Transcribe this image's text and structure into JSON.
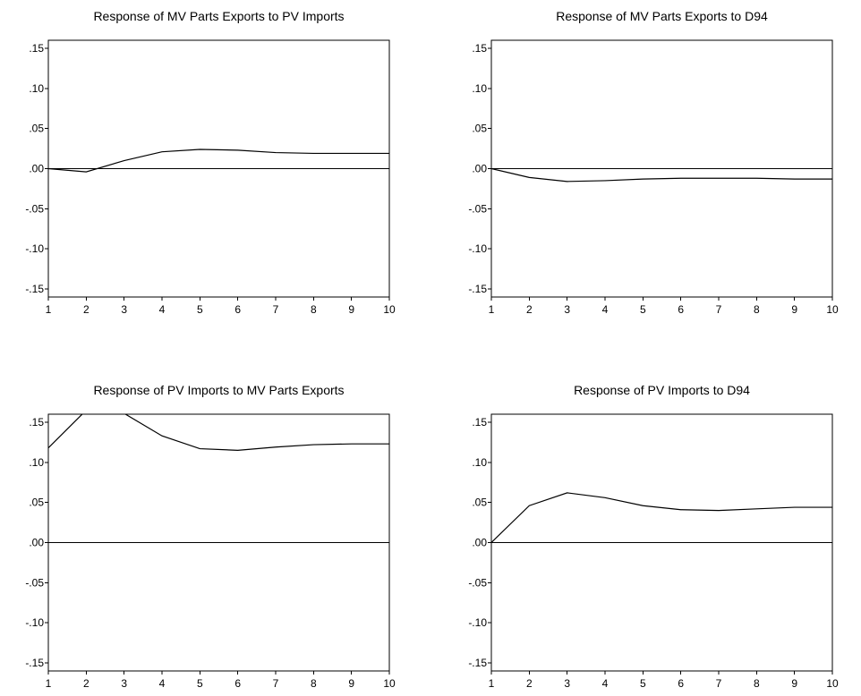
{
  "chart_data": [
    {
      "type": "line",
      "title": "Response of MV Parts Exports to PV Imports",
      "xlabel": "",
      "ylabel": "",
      "x": [
        1,
        2,
        3,
        4,
        5,
        6,
        7,
        8,
        9,
        10
      ],
      "x_ticks": [
        "1",
        "2",
        "3",
        "4",
        "5",
        "6",
        "7",
        "8",
        "9",
        "10"
      ],
      "y_ticks": [
        ".15",
        ".10",
        ".05",
        ".00",
        "-.05",
        "-.10",
        "-.15"
      ],
      "y_tick_values": [
        0.15,
        0.1,
        0.05,
        0.0,
        -0.05,
        -0.1,
        -0.15
      ],
      "ylim": [
        -0.16,
        0.16
      ],
      "xlim": [
        1,
        10
      ],
      "grid": false,
      "zero_line": true,
      "series": [
        {
          "values": [
            0.0,
            -0.004,
            0.01,
            0.021,
            0.024,
            0.023,
            0.02,
            0.019,
            0.019,
            0.019
          ]
        }
      ]
    },
    {
      "type": "line",
      "title": "Response of MV Parts Exports to D94",
      "xlabel": "",
      "ylabel": "",
      "x": [
        1,
        2,
        3,
        4,
        5,
        6,
        7,
        8,
        9,
        10
      ],
      "x_ticks": [
        "1",
        "2",
        "3",
        "4",
        "5",
        "6",
        "7",
        "8",
        "9",
        "10"
      ],
      "y_ticks": [
        ".15",
        ".10",
        ".05",
        ".00",
        "-.05",
        "-.10",
        "-.15"
      ],
      "y_tick_values": [
        0.15,
        0.1,
        0.05,
        0.0,
        -0.05,
        -0.1,
        -0.15
      ],
      "ylim": [
        -0.16,
        0.16
      ],
      "xlim": [
        1,
        10
      ],
      "grid": false,
      "zero_line": true,
      "series": [
        {
          "values": [
            0.0,
            -0.011,
            -0.016,
            -0.015,
            -0.013,
            -0.012,
            -0.012,
            -0.012,
            -0.013,
            -0.013
          ]
        }
      ]
    },
    {
      "type": "line",
      "title": "Response of PV Imports to MV Parts Exports",
      "xlabel": "",
      "ylabel": "",
      "x": [
        1,
        2,
        3,
        4,
        5,
        6,
        7,
        8,
        9,
        10
      ],
      "x_ticks": [
        "1",
        "2",
        "3",
        "4",
        "5",
        "6",
        "7",
        "8",
        "9",
        "10"
      ],
      "y_ticks": [
        ".15",
        ".10",
        ".05",
        ".00",
        "-.05",
        "-.10",
        "-.15"
      ],
      "y_tick_values": [
        0.15,
        0.1,
        0.05,
        0.0,
        -0.05,
        -0.1,
        -0.15
      ],
      "ylim": [
        -0.16,
        0.16
      ],
      "xlim": [
        1,
        10
      ],
      "grid": false,
      "zero_line": true,
      "series": [
        {
          "values": [
            0.118,
            0.165,
            0.161,
            0.133,
            0.117,
            0.115,
            0.119,
            0.122,
            0.123,
            0.123
          ]
        }
      ]
    },
    {
      "type": "line",
      "title": "Response of PV Imports to D94",
      "xlabel": "",
      "ylabel": "",
      "x": [
        1,
        2,
        3,
        4,
        5,
        6,
        7,
        8,
        9,
        10
      ],
      "x_ticks": [
        "1",
        "2",
        "3",
        "4",
        "5",
        "6",
        "7",
        "8",
        "9",
        "10"
      ],
      "y_ticks": [
        ".15",
        ".10",
        ".05",
        ".00",
        "-.05",
        "-.10",
        "-.15"
      ],
      "y_tick_values": [
        0.15,
        0.1,
        0.05,
        0.0,
        -0.05,
        -0.1,
        -0.15
      ],
      "ylim": [
        -0.16,
        0.16
      ],
      "xlim": [
        1,
        10
      ],
      "grid": false,
      "zero_line": true,
      "series": [
        {
          "values": [
            0.0,
            0.046,
            0.062,
            0.056,
            0.046,
            0.041,
            0.04,
            0.042,
            0.044,
            0.044
          ]
        }
      ]
    }
  ]
}
